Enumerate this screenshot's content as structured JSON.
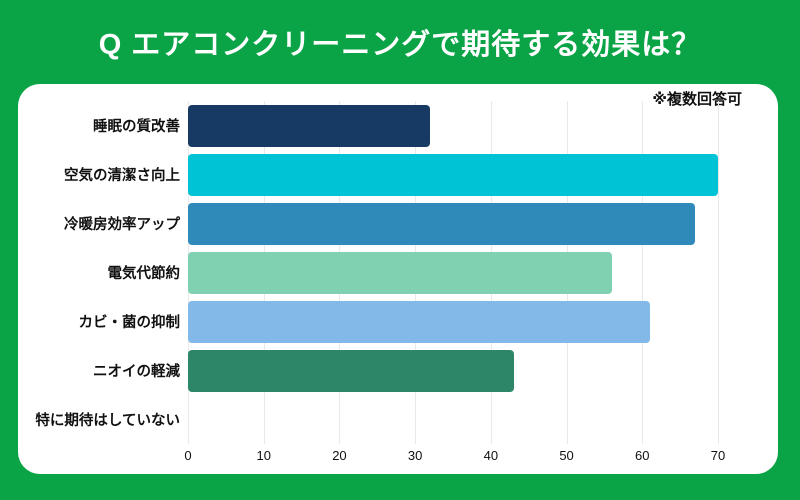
{
  "page": {
    "background_color": "#0AA446",
    "title": "Q エアコンクリーニングで期待する効果は？",
    "note": "※複数回答可"
  },
  "chart_data": {
    "type": "bar",
    "orientation": "horizontal",
    "title": "Q エアコンクリーニングで期待する効果は？",
    "annotation": "※複数回答可",
    "categories": [
      "睡眠の質改善",
      "空気の清潔さ向上",
      "冷暖房効率アップ",
      "電気代節約",
      "カビ・菌の抑制",
      "ニオイの軽減",
      "特に期待はしていない"
    ],
    "values": [
      32,
      70,
      67,
      56,
      61,
      43,
      0
    ],
    "bar_colors": [
      "#163A64",
      "#00C4D6",
      "#2F8ABA",
      "#7FD1B2",
      "#82B9E8",
      "#2E8668",
      "#2E8668"
    ],
    "xlabel": "",
    "ylabel": "",
    "xlim": [
      0,
      70
    ],
    "x_ticks": [
      0,
      10,
      20,
      30,
      40,
      50,
      60,
      70
    ],
    "grid": true,
    "gridline_color": "#E9E9E9",
    "legend": false
  }
}
